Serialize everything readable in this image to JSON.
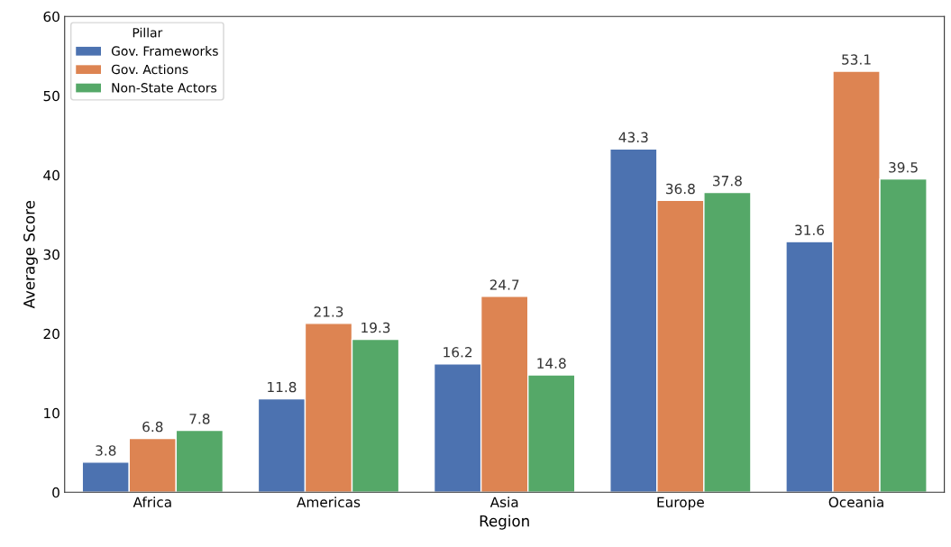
{
  "chart_data": {
    "type": "bar",
    "xlabel": "Region",
    "ylabel": "Average Score",
    "legend_title": "Pillar",
    "categories": [
      "Africa",
      "Americas",
      "Asia",
      "Europe",
      "Oceania"
    ],
    "series": [
      {
        "name": "Gov. Frameworks",
        "color": "#4c72b0",
        "values": [
          3.8,
          11.8,
          16.2,
          43.3,
          31.6
        ]
      },
      {
        "name": "Gov. Actions",
        "color": "#dd8452",
        "values": [
          6.8,
          21.3,
          24.7,
          36.8,
          53.1
        ]
      },
      {
        "name": "Non-State Actors",
        "color": "#55a868",
        "values": [
          7.8,
          19.3,
          14.8,
          37.8,
          39.5
        ]
      }
    ],
    "ylim": [
      0,
      60
    ],
    "yticks": [
      0,
      10,
      20,
      30,
      40,
      50,
      60
    ],
    "data_labels": true,
    "legend": "top left",
    "grid": false
  }
}
